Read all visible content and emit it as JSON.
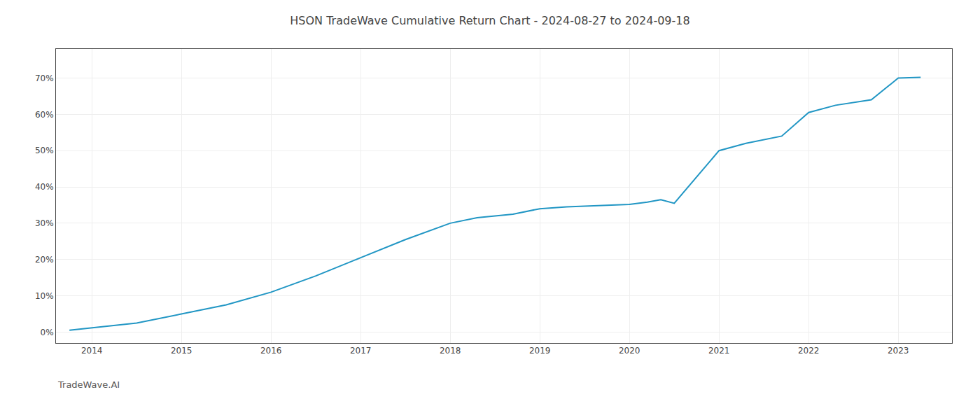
{
  "chart_data": {
    "type": "line",
    "title": "HSON TradeWave Cumulative Return Chart - 2024-08-27 to 2024-09-18",
    "annotations": [
      "TradeWave.AI"
    ],
    "x": [
      2013.75,
      2014.0,
      2014.5,
      2015.0,
      2015.5,
      2016.0,
      2016.5,
      2017.0,
      2017.5,
      2018.0,
      2018.3,
      2018.7,
      2019.0,
      2019.3,
      2019.6,
      2019.9,
      2020.0,
      2020.2,
      2020.35,
      2020.5,
      2021.0,
      2021.3,
      2021.7,
      2022.0,
      2022.3,
      2022.7,
      2023.0,
      2023.25
    ],
    "values": [
      0.5,
      1.2,
      2.5,
      5.0,
      7.5,
      11.0,
      15.5,
      20.5,
      25.5,
      30.0,
      31.5,
      32.5,
      34.0,
      34.5,
      34.8,
      35.0,
      35.2,
      35.8,
      36.5,
      35.5,
      50.0,
      52.0,
      54.0,
      60.5,
      62.5,
      64.0,
      70.0,
      70.2
    ],
    "color": "#2196c4",
    "xlim": [
      2013.6,
      2023.6
    ],
    "ylim": [
      -3,
      78
    ],
    "xticks": [
      2014,
      2015,
      2016,
      2017,
      2018,
      2019,
      2020,
      2021,
      2022,
      2023
    ],
    "yticks": [
      {
        "value": 0,
        "label": "0%"
      },
      {
        "value": 10,
        "label": "10%"
      },
      {
        "value": 20,
        "label": "20%"
      },
      {
        "value": 30,
        "label": "30%"
      },
      {
        "value": 40,
        "label": "40%"
      },
      {
        "value": 50,
        "label": "50%"
      },
      {
        "value": 60,
        "label": "60%"
      },
      {
        "value": 70,
        "label": "70%"
      }
    ],
    "grid": true
  }
}
